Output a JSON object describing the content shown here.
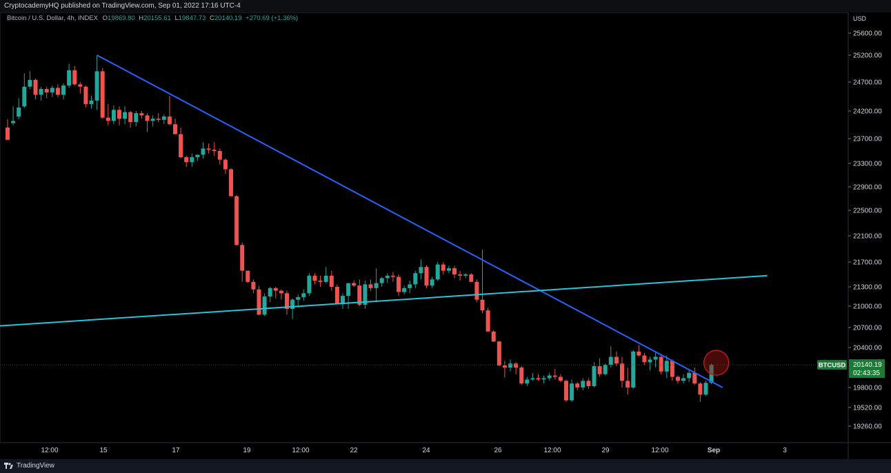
{
  "header": {
    "published_text": "CryptocademyHQ published on TradingView.com, Sep 01, 2022 17:16 UTC-4"
  },
  "footer": {
    "brand": "TradingView"
  },
  "colors": {
    "up": "#26a69a",
    "down": "#ef5350",
    "trendline": "#2962ff",
    "support": "#26c6da",
    "price_tag": "#1b7a36"
  },
  "chart_data": {
    "type": "candlestick",
    "symbol_line": {
      "name": "Bitcoin / U.S. Dollar, 4h, INDEX",
      "open_label": "O",
      "open": "19869.80",
      "high_label": "H",
      "high": "20155.61",
      "low_label": "L",
      "low": "19847.73",
      "close_label": "C",
      "close": "20140.19",
      "change": "+270.69 (+1.36%)"
    },
    "currency": "USD",
    "y_ticks": [
      "25600.00",
      "25200.00",
      "24700.00",
      "24200.00",
      "23700.00",
      "23300.00",
      "22900.00",
      "22500.00",
      "22100.00",
      "21700.00",
      "21300.00",
      "21000.00",
      "20700.00",
      "20400.00",
      "19800.00",
      "19520.00",
      "19260.00"
    ],
    "x_ticks": [
      "12:00",
      "15",
      "17",
      "19",
      "12:00",
      "22",
      "24",
      "26",
      "12:00",
      "29",
      "12:00",
      "Sep",
      "3"
    ],
    "last_price": {
      "symbol": "BTCUSD",
      "price": "20140.19",
      "countdown": "02:43:35",
      "value": 20140.19
    },
    "candles": [
      [
        23900,
        24050,
        23680,
        23680
      ],
      [
        23980,
        24280,
        23940,
        24020
      ],
      [
        24100,
        24420,
        24050,
        24260
      ],
      [
        24280,
        24860,
        24250,
        24620
      ],
      [
        24620,
        24900,
        24580,
        24740
      ],
      [
        24740,
        24760,
        24400,
        24480
      ],
      [
        24480,
        24620,
        24380,
        24580
      ],
      [
        24580,
        24620,
        24420,
        24520
      ],
      [
        24520,
        24640,
        24440,
        24600
      ],
      [
        24600,
        24660,
        24440,
        24480
      ],
      [
        24480,
        24680,
        24400,
        24640
      ],
      [
        24640,
        25040,
        24600,
        24920
      ],
      [
        24920,
        25000,
        24640,
        24660
      ],
      [
        24660,
        24700,
        24500,
        24620
      ],
      [
        24620,
        24640,
        24260,
        24320
      ],
      [
        24320,
        24460,
        24240,
        24380
      ],
      [
        24380,
        25200,
        24220,
        24900
      ],
      [
        24900,
        24960,
        24060,
        24080
      ],
      [
        24080,
        24320,
        23940,
        24020
      ],
      [
        24020,
        24300,
        23960,
        24220
      ],
      [
        24220,
        24280,
        23940,
        24060
      ],
      [
        24060,
        24280,
        23960,
        24180
      ],
      [
        24180,
        24200,
        23900,
        24000
      ],
      [
        24000,
        24200,
        23920,
        24160
      ],
      [
        24160,
        24200,
        24060,
        24120
      ],
      [
        24120,
        24160,
        23820,
        24020
      ],
      [
        24020,
        24120,
        23920,
        24060
      ],
      [
        24060,
        24160,
        24000,
        24040
      ],
      [
        24040,
        24140,
        23960,
        24100
      ],
      [
        24100,
        24460,
        23940,
        23960
      ],
      [
        23960,
        24060,
        23780,
        23780
      ],
      [
        23780,
        23900,
        23380,
        23400
      ],
      [
        23400,
        23420,
        23240,
        23320
      ],
      [
        23320,
        23460,
        23240,
        23400
      ],
      [
        23400,
        23440,
        23340,
        23440
      ],
      [
        23440,
        23640,
        23380,
        23540
      ],
      [
        23540,
        23620,
        23460,
        23520
      ],
      [
        23520,
        23640,
        23420,
        23500
      ],
      [
        23500,
        23540,
        23280,
        23360
      ],
      [
        23360,
        23380,
        23120,
        23200
      ],
      [
        23200,
        23220,
        22740,
        22740
      ],
      [
        22740,
        22760,
        21950,
        21960
      ],
      [
        21960,
        22000,
        21380,
        21560
      ],
      [
        21560,
        21560,
        21360,
        21380
      ],
      [
        21380,
        21420,
        21200,
        21260
      ],
      [
        21260,
        21320,
        20870,
        20880
      ],
      [
        20880,
        21200,
        20860,
        21150
      ],
      [
        21150,
        21300,
        21060,
        21280
      ],
      [
        21280,
        21300,
        21120,
        21240
      ],
      [
        21240,
        21260,
        21100,
        21200
      ],
      [
        21200,
        21240,
        20880,
        20960
      ],
      [
        20960,
        21120,
        20820,
        21100
      ],
      [
        21100,
        21180,
        20980,
        21140
      ],
      [
        21140,
        21260,
        21080,
        21200
      ],
      [
        21200,
        21520,
        21160,
        21480
      ],
      [
        21480,
        21520,
        21340,
        21400
      ],
      [
        21400,
        21480,
        21300,
        21380
      ],
      [
        21380,
        21620,
        21360,
        21480
      ],
      [
        21480,
        21560,
        21240,
        21300
      ],
      [
        21300,
        21340,
        21040,
        21040
      ],
      [
        21040,
        21200,
        20960,
        21160
      ],
      [
        21160,
        21340,
        20960,
        21360
      ],
      [
        21360,
        21400,
        21300,
        21320
      ],
      [
        21320,
        21420,
        21000,
        21020
      ],
      [
        21020,
        21400,
        20960,
        21340
      ],
      [
        21340,
        21420,
        21240,
        21280
      ],
      [
        21280,
        21600,
        21060,
        21360
      ],
      [
        21360,
        21460,
        21300,
        21440
      ],
      [
        21440,
        21520,
        21360,
        21480
      ],
      [
        21480,
        21540,
        21380,
        21460
      ],
      [
        21460,
        21500,
        21160,
        21220
      ],
      [
        21220,
        21320,
        21180,
        21280
      ],
      [
        21280,
        21400,
        21200,
        21340
      ],
      [
        21340,
        21560,
        21280,
        21520
      ],
      [
        21520,
        21740,
        21420,
        21620
      ],
      [
        21620,
        21650,
        21280,
        21320
      ],
      [
        21320,
        21460,
        21280,
        21420
      ],
      [
        21420,
        21700,
        21400,
        21660
      ],
      [
        21660,
        21700,
        21500,
        21560
      ],
      [
        21560,
        21640,
        21520,
        21600
      ],
      [
        21600,
        21640,
        21440,
        21500
      ],
      [
        21500,
        21560,
        21400,
        21480
      ],
      [
        21480,
        21520,
        21440,
        21500
      ],
      [
        21500,
        21520,
        21380,
        21380
      ],
      [
        21380,
        21420,
        21060,
        21100
      ],
      [
        21100,
        21890,
        20900,
        20940
      ],
      [
        20940,
        20980,
        20640,
        20640
      ],
      [
        20640,
        20660,
        20480,
        20490
      ],
      [
        20490,
        20500,
        20120,
        20130
      ],
      [
        20130,
        20200,
        19950,
        20100
      ],
      [
        20100,
        20220,
        20040,
        20160
      ],
      [
        20160,
        20180,
        20000,
        20100
      ],
      [
        20100,
        20120,
        19840,
        19860
      ],
      [
        19860,
        19960,
        19820,
        19920
      ],
      [
        19920,
        20020,
        19900,
        19940
      ],
      [
        19940,
        20000,
        19900,
        19920
      ],
      [
        19920,
        19980,
        19860,
        19940
      ],
      [
        19940,
        20020,
        19900,
        19980
      ],
      [
        19980,
        20080,
        19920,
        19960
      ],
      [
        19960,
        20000,
        19880,
        19900
      ],
      [
        19900,
        19920,
        19600,
        19620
      ],
      [
        19620,
        19920,
        19600,
        19860
      ],
      [
        19860,
        19880,
        19760,
        19800
      ],
      [
        19800,
        19940,
        19760,
        19900
      ],
      [
        19900,
        19940,
        19780,
        19820
      ],
      [
        19820,
        20180,
        19800,
        20120
      ],
      [
        20120,
        20240,
        19960,
        20000
      ],
      [
        20000,
        20160,
        19980,
        20140
      ],
      [
        20140,
        20420,
        20100,
        20260
      ],
      [
        20260,
        20340,
        20120,
        20160
      ],
      [
        20160,
        20260,
        19800,
        19900
      ],
      [
        19900,
        20100,
        19700,
        19800
      ],
      [
        19800,
        20360,
        19780,
        20340
      ],
      [
        20340,
        20440,
        20260,
        20280
      ],
      [
        20280,
        20320,
        20140,
        20180
      ],
      [
        20180,
        20260,
        20060,
        20220
      ],
      [
        20220,
        20320,
        20100,
        20260
      ],
      [
        20260,
        20300,
        20000,
        20040
      ],
      [
        20040,
        20280,
        19940,
        20200
      ],
      [
        20200,
        20220,
        19900,
        19960
      ],
      [
        19960,
        19980,
        19860,
        19900
      ],
      [
        19900,
        20000,
        19860,
        19940
      ],
      [
        19940,
        20060,
        19880,
        20020
      ],
      [
        20020,
        20100,
        19840,
        19860
      ],
      [
        19860,
        19880,
        19600,
        19700
      ],
      [
        19700,
        19900,
        19680,
        19870
      ],
      [
        19870,
        20160,
        19850,
        20140
      ]
    ],
    "trend_lines": [
      {
        "role": "descending-resistance",
        "from": [
          16,
          25200
        ],
        "to": [
          128,
          19800
        ]
      },
      {
        "role": "ascending-support",
        "from": [
          -15,
          20650
        ],
        "to": [
          136,
          21480
        ]
      }
    ],
    "highlight": {
      "candle_index": 127,
      "price": 20140
    }
  }
}
